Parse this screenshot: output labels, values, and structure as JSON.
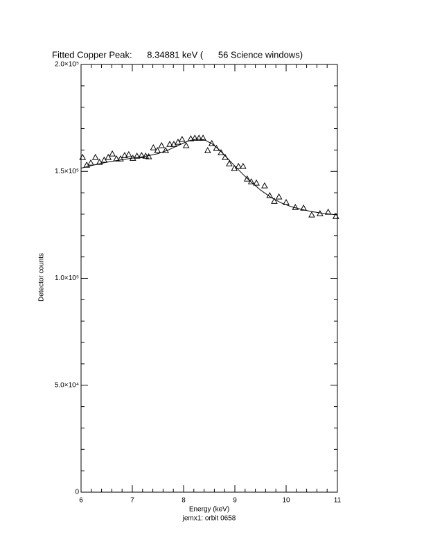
{
  "chart_data": {
    "type": "scatter",
    "title": "Fitted Copper Peak:      8.34881 keV (      56 Science windows)",
    "x_label": "Energy (keV)",
    "y_label": "Detector counts",
    "subtitle": "jemx1: orbit 0658",
    "xlim": [
      6,
      11
    ],
    "ylim": [
      0,
      200000
    ],
    "xticks": [
      6,
      7,
      8,
      9,
      10,
      11
    ],
    "yticks": [
      {
        "value": 0,
        "label": "0"
      },
      {
        "value": 50000,
        "label": "5.0×10⁴"
      },
      {
        "value": 100000,
        "label": "1.0×10⁵"
      },
      {
        "value": 150000,
        "label": "1.5×10⁵"
      },
      {
        "value": 200000,
        "label": "2.0×10⁵"
      }
    ],
    "xminorticks": [
      6.2,
      6.4,
      6.6,
      6.8,
      7.2,
      7.4,
      7.6,
      7.8,
      8.2,
      8.4,
      8.6,
      8.8,
      9.2,
      9.4,
      9.6,
      9.8,
      10.2,
      10.4,
      10.6,
      10.8
    ],
    "yminorticks": [
      10000,
      20000,
      30000,
      40000,
      60000,
      70000,
      80000,
      90000,
      110000,
      120000,
      130000,
      140000,
      160000,
      170000,
      180000,
      190000
    ],
    "series": [
      {
        "marker": "triangle",
        "color": "#000000",
        "x": [
          6.03,
          6.11,
          6.19,
          6.28,
          6.36,
          6.45,
          6.53,
          6.61,
          6.69,
          6.77,
          6.85,
          6.93,
          7.01,
          7.09,
          7.18,
          7.26,
          7.32,
          7.41,
          7.49,
          7.57,
          7.65,
          7.73,
          7.81,
          7.89,
          7.97,
          8.05,
          8.14,
          8.22,
          8.3,
          8.38,
          8.47,
          8.55,
          8.64,
          8.73,
          8.81,
          8.89,
          8.99,
          9.07,
          9.16,
          9.24,
          9.32,
          9.42,
          9.58,
          9.68,
          9.77,
          9.86,
          10.0,
          10.18,
          10.34,
          10.5,
          10.66,
          10.82,
          10.97
        ],
        "values": [
          156600,
          153000,
          154000,
          156600,
          154300,
          155300,
          156600,
          158200,
          155900,
          155900,
          157500,
          157900,
          156200,
          157200,
          157500,
          157200,
          156900,
          161100,
          159800,
          162100,
          159800,
          162700,
          162700,
          163700,
          165000,
          162100,
          165300,
          165600,
          165600,
          165600,
          159800,
          163100,
          160800,
          158800,
          156600,
          153600,
          151400,
          152400,
          152400,
          146500,
          145200,
          144600,
          143300,
          138700,
          136100,
          138100,
          135500,
          133200,
          132900,
          129700,
          130300,
          131000,
          129000
        ]
      },
      {
        "marker": "line",
        "color": "#000000",
        "x": [
          6.0,
          6.25,
          6.5,
          6.75,
          7.0,
          7.25,
          7.5,
          7.7,
          7.9,
          8.1,
          8.25,
          8.4,
          8.55,
          8.7,
          8.85,
          9.0,
          9.15,
          9.3,
          9.5,
          9.7,
          9.9,
          10.1,
          10.3,
          10.5,
          10.75,
          11.0
        ],
        "values": [
          151500,
          153000,
          154300,
          155300,
          156200,
          157000,
          158300,
          160000,
          162200,
          164300,
          165100,
          164800,
          163000,
          160000,
          156300,
          152500,
          148800,
          145400,
          141300,
          137900,
          135300,
          133500,
          132200,
          131200,
          130300,
          129600
        ]
      }
    ]
  }
}
